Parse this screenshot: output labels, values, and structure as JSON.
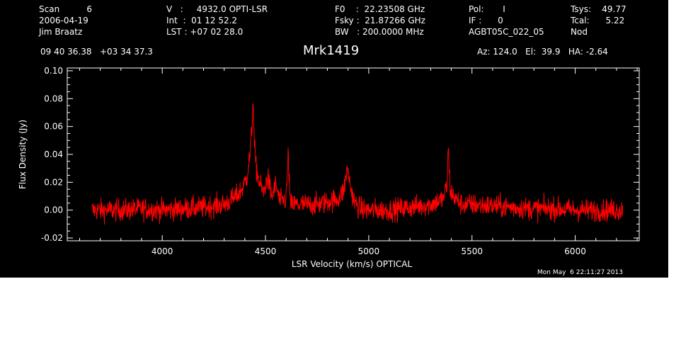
{
  "header": {
    "col1": [
      "Scan          6",
      "2006-04-19",
      "Jim Braatz"
    ],
    "col2": [
      "V   :     4932.0 OPTI-LSR",
      "Int  :  01 12 52.2",
      "LST : +07 02 28.0"
    ],
    "col3": [
      "F0    :  22.23508 GHz",
      "Fsky :  21.87266 GHz",
      "BW   : 200.0000 MHz"
    ],
    "col4": [
      "Pol:       I",
      "IF :      0",
      "AGBT05C_022_05"
    ],
    "col5": [
      "Tsys:    49.77",
      "Tcal:      5.22",
      "Nod"
    ],
    "coords": "09 40 36.38   +03 34 37.3",
    "source": "Mrk1419",
    "azelha": "Az: 124.0   El:  39.9   HA: -2.64",
    "timestamp": "Mon May  6 22:11:27 2013"
  },
  "chart_data": {
    "type": "line",
    "title": "Mrk1419",
    "xlabel": "LSR Velocity (km/s) OPTICAL",
    "ylabel": "Flux Density (Jy)",
    "xlim": [
      3540,
      6310
    ],
    "ylim": [
      -0.022,
      0.102
    ],
    "x_ticks": [
      4000,
      4500,
      5000,
      5500,
      6000
    ],
    "y_ticks": [
      -0.02,
      0.0,
      0.02,
      0.04,
      0.06,
      0.08,
      0.1
    ],
    "x_tick_labels": [
      "4000",
      "4500",
      "5000",
      "5500",
      "6000"
    ],
    "y_tick_labels": [
      "-0.02",
      "0.00",
      "0.02",
      "0.04",
      "0.06",
      "0.08",
      "0.10"
    ],
    "grid": false,
    "line_color": "#ff0000",
    "noise_rms": 0.004,
    "series": [
      {
        "x": [
          3660,
          3700,
          3800,
          3900,
          4000,
          4100,
          4200,
          4300,
          4360,
          4390,
          4410,
          4425,
          4435,
          4440,
          4445,
          4455,
          4470,
          4490,
          4510,
          4530,
          4550,
          4570,
          4600,
          4610,
          4620,
          4650,
          4700,
          4750,
          4800,
          4850,
          4880,
          4890,
          4900,
          4910,
          4930,
          4960,
          5000,
          5100,
          5200,
          5300,
          5360,
          5380,
          5385,
          5395,
          5420,
          5450,
          5500,
          5600,
          5700,
          5800,
          5900,
          6000,
          6100,
          6200,
          6230
        ],
        "y": [
          0.0,
          0.0,
          0.0,
          0.001,
          0.0,
          0.001,
          0.002,
          0.004,
          0.01,
          0.016,
          0.024,
          0.04,
          0.06,
          0.082,
          0.05,
          0.03,
          0.02,
          0.012,
          0.024,
          0.01,
          0.018,
          0.006,
          0.008,
          0.04,
          0.004,
          0.004,
          0.004,
          0.004,
          0.006,
          0.008,
          0.014,
          0.026,
          0.028,
          0.018,
          0.006,
          0.001,
          0.0,
          0.0,
          0.002,
          0.004,
          0.008,
          0.018,
          0.045,
          0.014,
          0.008,
          0.004,
          0.004,
          0.003,
          0.002,
          0.001,
          0.001,
          0.0,
          0.0,
          0.0,
          0.0
        ]
      }
    ]
  }
}
